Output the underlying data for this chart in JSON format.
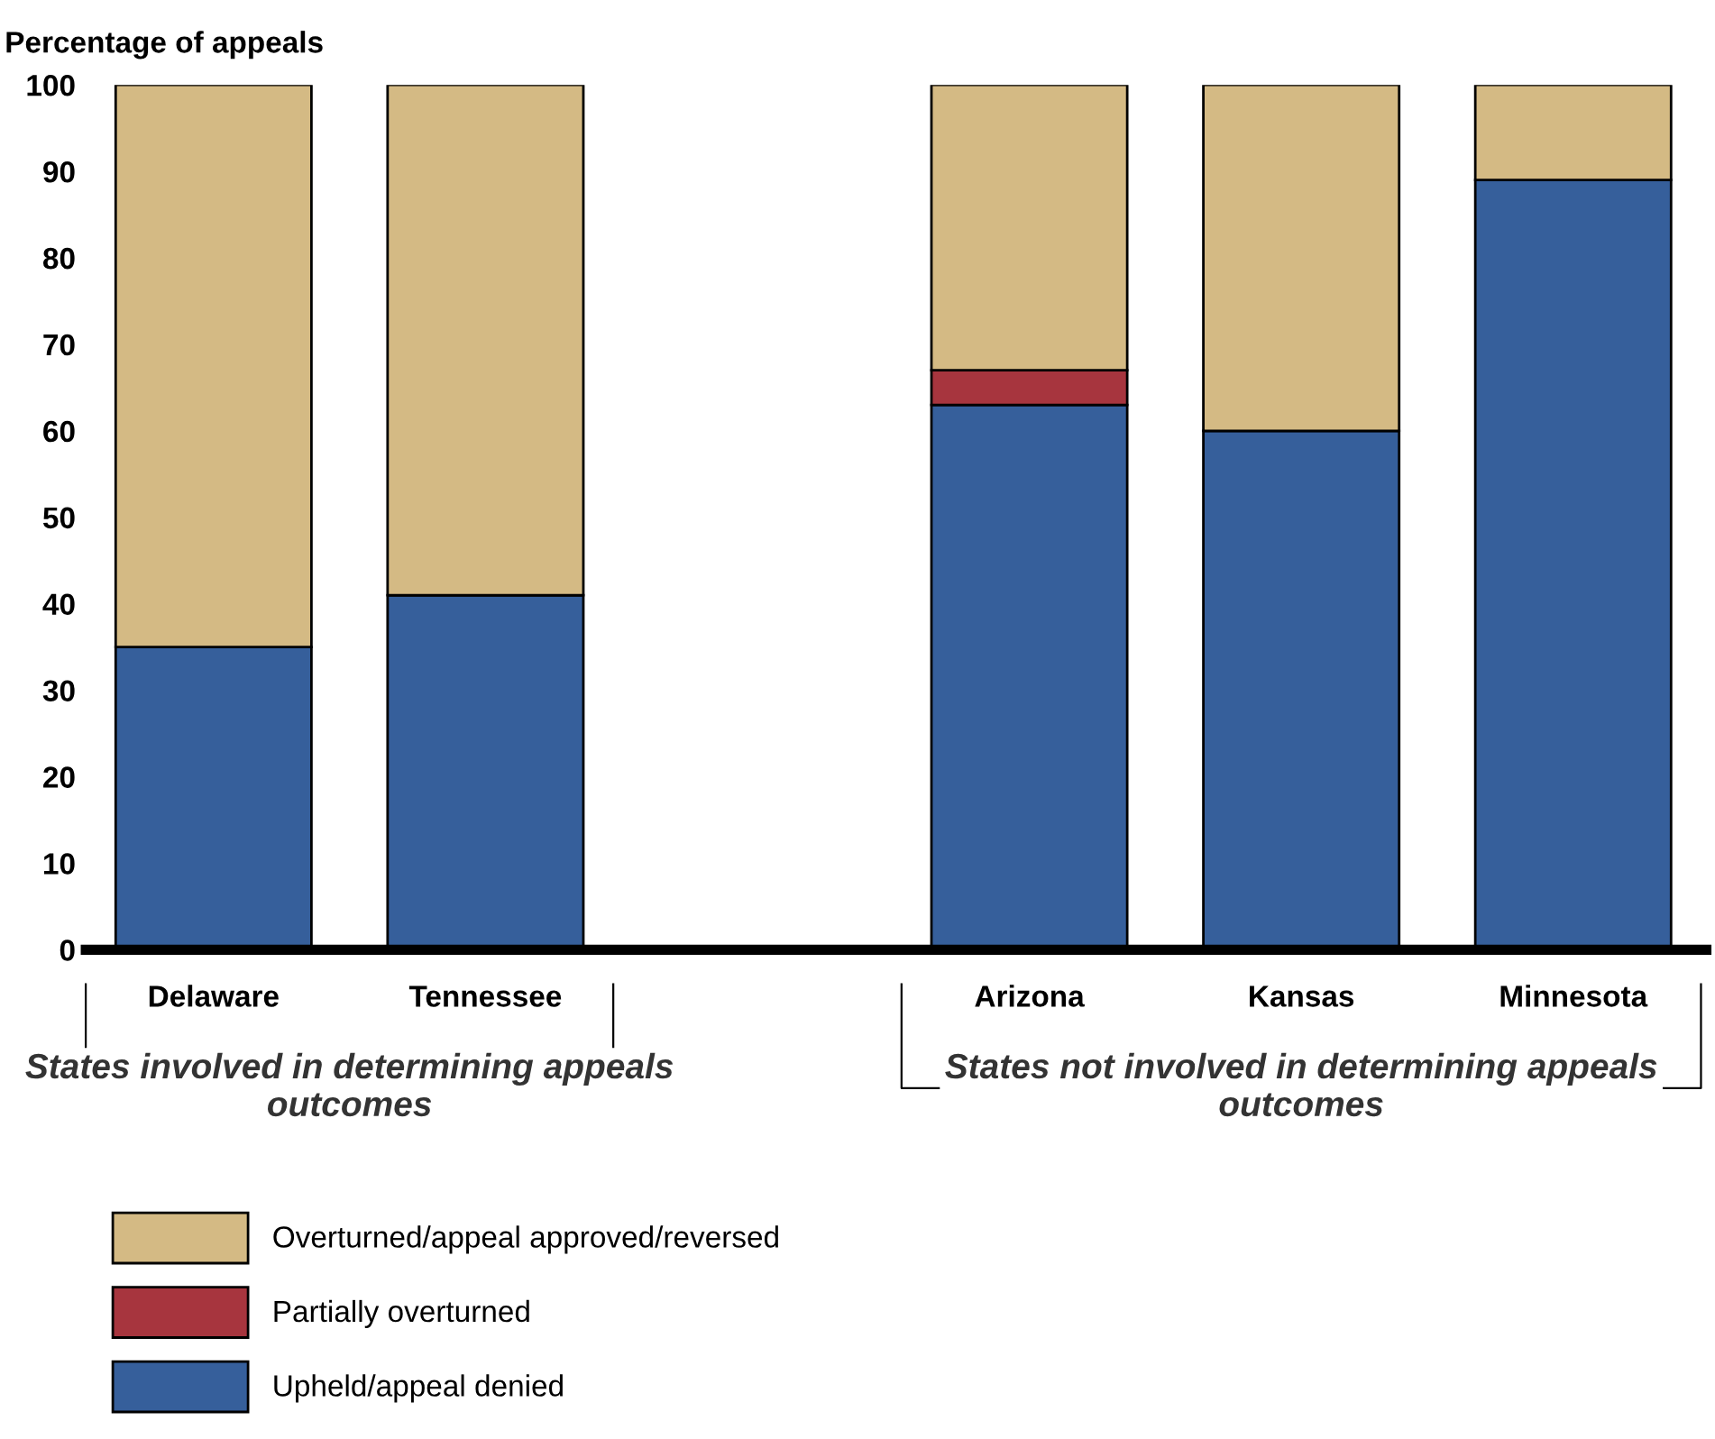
{
  "chart_data": {
    "type": "bar",
    "stacked": true,
    "ylabel": "Percentage of appeals",
    "categories": [
      "Delaware",
      "Tennessee",
      null,
      "Arizona",
      "Kansas",
      "Minnesota"
    ],
    "series": [
      {
        "name": "Upheld/appeal denied",
        "color": "#365f9b",
        "values": [
          35,
          41,
          null,
          63,
          60,
          89
        ]
      },
      {
        "name": "Partially overturned",
        "color": "#a7353e",
        "values": [
          0,
          0,
          null,
          4,
          0,
          0
        ]
      },
      {
        "name": "Overturned/appeal approved/reversed",
        "color": "#d4ba84",
        "values": [
          65,
          59,
          null,
          33,
          40,
          11
        ]
      }
    ],
    "ylim": [
      0,
      100
    ],
    "yticks": [
      0,
      10,
      20,
      30,
      40,
      50,
      60,
      70,
      80,
      90,
      100
    ],
    "grid": false,
    "legend": "bottom",
    "annotations": [
      "States involved in determining appeals outcomes",
      "States not involved in determining appeals outcomes"
    ]
  }
}
